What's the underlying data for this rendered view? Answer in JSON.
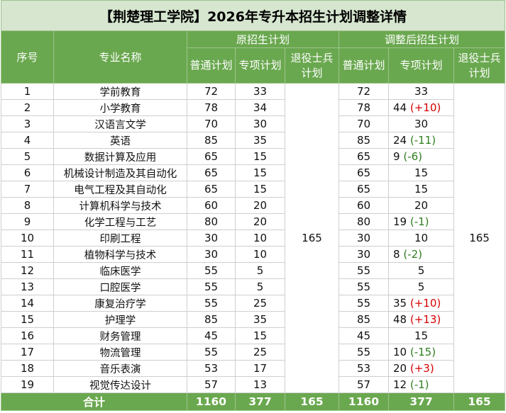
{
  "title": "【荆楚理工学院】2026年专升本招生计划调整详情",
  "headers": {
    "index": "序号",
    "major": "专业名称",
    "original_group": "原招生计划",
    "adjusted_group": "调整后招生计划",
    "general": "普通计划",
    "special": "专项计划",
    "veteran": "退役士兵计划"
  },
  "rows": [
    {
      "no": "1",
      "major": "学前教育",
      "orig_general": "72",
      "orig_special": "33",
      "adj_general": "72",
      "adj_special": "33",
      "change": ""
    },
    {
      "no": "2",
      "major": "小学教育",
      "orig_general": "78",
      "orig_special": "34",
      "adj_general": "78",
      "adj_special": "44",
      "change": "(+10)"
    },
    {
      "no": "3",
      "major": "汉语言文学",
      "orig_general": "70",
      "orig_special": "30",
      "adj_general": "70",
      "adj_special": "30",
      "change": ""
    },
    {
      "no": "4",
      "major": "英语",
      "orig_general": "85",
      "orig_special": "35",
      "adj_general": "85",
      "adj_special": "24",
      "change": "(-11)"
    },
    {
      "no": "5",
      "major": "数据计算及应用",
      "orig_general": "65",
      "orig_special": "15",
      "adj_general": "65",
      "adj_special": "9",
      "change": "(-6)"
    },
    {
      "no": "6",
      "major": "机械设计制造及其自动化",
      "orig_general": "65",
      "orig_special": "15",
      "adj_general": "65",
      "adj_special": "15",
      "change": ""
    },
    {
      "no": "7",
      "major": "电气工程及其自动化",
      "orig_general": "65",
      "orig_special": "15",
      "adj_general": "65",
      "adj_special": "15",
      "change": ""
    },
    {
      "no": "8",
      "major": "计算机科学与技术",
      "orig_general": "60",
      "orig_special": "20",
      "adj_general": "60",
      "adj_special": "20",
      "change": ""
    },
    {
      "no": "9",
      "major": "化学工程与工艺",
      "orig_general": "80",
      "orig_special": "20",
      "adj_general": "80",
      "adj_special": "19",
      "change": "(-1)"
    },
    {
      "no": "10",
      "major": "印刷工程",
      "orig_general": "30",
      "orig_special": "10",
      "adj_general": "30",
      "adj_special": "10",
      "change": ""
    },
    {
      "no": "11",
      "major": "植物科学与技术",
      "orig_general": "30",
      "orig_special": "10",
      "adj_general": "30",
      "adj_special": "8",
      "change": "(-2)"
    },
    {
      "no": "12",
      "major": "临床医学",
      "orig_general": "55",
      "orig_special": "5",
      "adj_general": "55",
      "adj_special": "5",
      "change": ""
    },
    {
      "no": "13",
      "major": "口腔医学",
      "orig_general": "55",
      "orig_special": "5",
      "adj_general": "55",
      "adj_special": "5",
      "change": ""
    },
    {
      "no": "14",
      "major": "康复治疗学",
      "orig_general": "55",
      "orig_special": "25",
      "adj_general": "55",
      "adj_special": "35",
      "change": "(+10)"
    },
    {
      "no": "15",
      "major": "护理学",
      "orig_general": "85",
      "orig_special": "35",
      "adj_general": "85",
      "adj_special": "48",
      "change": "(+13)"
    },
    {
      "no": "16",
      "major": "财务管理",
      "orig_general": "45",
      "orig_special": "15",
      "adj_general": "45",
      "adj_special": "15",
      "change": ""
    },
    {
      "no": "17",
      "major": "物流管理",
      "orig_general": "55",
      "orig_special": "25",
      "adj_general": "55",
      "adj_special": "10",
      "change": "(-15)"
    },
    {
      "no": "18",
      "major": "音乐表演",
      "orig_general": "53",
      "orig_special": "17",
      "adj_general": "53",
      "adj_special": "20",
      "change": "(+3)"
    },
    {
      "no": "19",
      "major": "视觉传达设计",
      "orig_general": "57",
      "orig_special": "13",
      "adj_general": "57",
      "adj_special": "12",
      "change": "(-1)"
    }
  ],
  "veteran_original": "165",
  "veteran_adjusted": "165",
  "total": {
    "label": "合计",
    "orig_general": "1160",
    "orig_special": "377",
    "orig_veteran": "165",
    "adj_general": "1160",
    "adj_special": "377",
    "adj_veteran": "165"
  },
  "colors": {
    "header_green": "#6aa84f",
    "title_bg": "#d6e6cf",
    "increase": "#d40000",
    "decrease": "#2f7d1f"
  }
}
